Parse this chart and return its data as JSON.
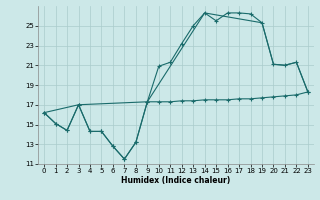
{
  "xlabel": "Humidex (Indice chaleur)",
  "bg_color": "#cce8e8",
  "grid_color": "#aacccc",
  "line_color": "#1a6b6b",
  "xlim": [
    -0.5,
    23.5
  ],
  "ylim": [
    11,
    27
  ],
  "yticks": [
    11,
    13,
    15,
    17,
    19,
    21,
    23,
    25
  ],
  "xticks": [
    0,
    1,
    2,
    3,
    4,
    5,
    6,
    7,
    8,
    9,
    10,
    11,
    12,
    13,
    14,
    15,
    16,
    17,
    18,
    19,
    20,
    21,
    22,
    23
  ],
  "line1_x": [
    0,
    1,
    2,
    3,
    4,
    5,
    6,
    7,
    8,
    9,
    10,
    11,
    12,
    13,
    14,
    15,
    16,
    17,
    18,
    19,
    20,
    21,
    22,
    23
  ],
  "line1_y": [
    16.2,
    15.1,
    14.4,
    17.0,
    14.3,
    14.3,
    12.8,
    11.5,
    13.2,
    17.3,
    20.9,
    21.3,
    23.2,
    25.0,
    26.3,
    25.5,
    26.3,
    26.3,
    26.2,
    25.3,
    21.1,
    21.0,
    21.3,
    18.3
  ],
  "line2_x": [
    0,
    1,
    2,
    3,
    4,
    5,
    6,
    7,
    8,
    9,
    10,
    11,
    12,
    13,
    14,
    15,
    16,
    17,
    18,
    19,
    20,
    21,
    22,
    23
  ],
  "line2_y": [
    16.2,
    15.1,
    14.4,
    17.0,
    14.3,
    14.3,
    12.8,
    11.5,
    13.2,
    17.3,
    17.3,
    17.3,
    17.4,
    17.4,
    17.5,
    17.5,
    17.5,
    17.6,
    17.6,
    17.7,
    17.8,
    17.9,
    18.0,
    18.3
  ],
  "line3_x": [
    0,
    3,
    9,
    14,
    19,
    20,
    21,
    22,
    23
  ],
  "line3_y": [
    16.2,
    17.0,
    17.3,
    26.3,
    25.3,
    21.1,
    21.0,
    21.3,
    18.3
  ]
}
